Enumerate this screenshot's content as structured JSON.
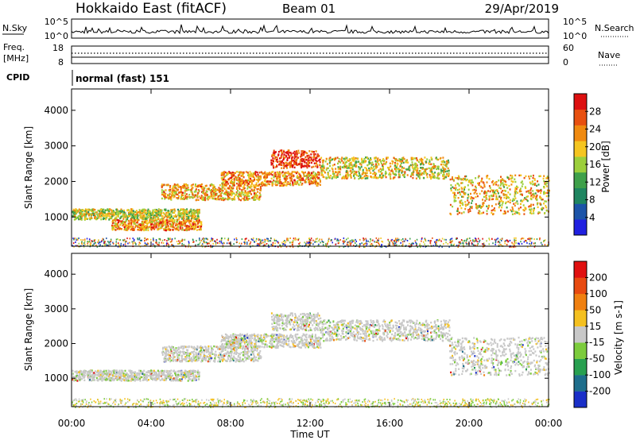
{
  "header": {
    "station": "Hokkaido East (fitACF)",
    "beam": "Beam 01",
    "date": "29/Apr/2019"
  },
  "top_panels": {
    "nsky_label": "N.Sky",
    "nsky_ticks": [
      "10^5",
      "10^0"
    ],
    "nsearch_label": "N.Search",
    "nsearch_ticks": [
      "10^5",
      "10^0"
    ],
    "freq_label_1": "Freq.",
    "freq_label_2": "[MHz]",
    "freq_ticks": [
      "18",
      "8"
    ],
    "nave_label": "Nave",
    "nave_ticks": [
      "60",
      "0"
    ],
    "cpid_label": "CPID",
    "cpid_value": "normal (fast) 151"
  },
  "chart_data": [
    {
      "type": "heatmap",
      "name": "power",
      "ylabel": "Slant Range [km]",
      "yticks": [
        "4000",
        "3000",
        "2000",
        "1000"
      ],
      "ylim": [
        180,
        4600
      ],
      "xlim": [
        0,
        24
      ],
      "colorbar_label": "Power [dB]",
      "colorbar_ticks": [
        "28",
        "24",
        "20",
        "16",
        "12",
        "8",
        "4"
      ],
      "colors": [
        "#2020e0",
        "#1c54a8",
        "#1f8560",
        "#3ea04a",
        "#9ccf3c",
        "#f5c520",
        "#f08a10",
        "#e85010",
        "#dd1010"
      ],
      "bands": [
        {
          "t": [
            0.0,
            6.4
          ],
          "range": [
            950,
            1250
          ],
          "level": 0.55
        },
        {
          "t": [
            2.0,
            6.5
          ],
          "range": [
            650,
            950
          ],
          "level": 0.75
        },
        {
          "t": [
            4.5,
            9.5
          ],
          "range": [
            1500,
            1950
          ],
          "level": 0.7
        },
        {
          "t": [
            7.5,
            12.5
          ],
          "range": [
            1900,
            2300
          ],
          "level": 0.75
        },
        {
          "t": [
            10.0,
            12.5
          ],
          "range": [
            2400,
            2900
          ],
          "level": 0.95
        },
        {
          "t": [
            12.5,
            19.0
          ],
          "range": [
            2100,
            2700
          ],
          "level": 0.6
        },
        {
          "t": [
            19.0,
            24.0
          ],
          "range": [
            1100,
            2200
          ],
          "level": 0.65
        }
      ]
    },
    {
      "type": "heatmap",
      "name": "velocity",
      "ylabel": "Slant Range [km]",
      "yticks": [
        "4000",
        "3000",
        "2000",
        "1000"
      ],
      "ylim": [
        180,
        4600
      ],
      "xlim": [
        0,
        24
      ],
      "colorbar_label": "Velocity [m s-1]",
      "colorbar_ticks": [
        "200",
        "100",
        "50",
        "15",
        "-15",
        "-50",
        "-100",
        "-200"
      ],
      "colors": [
        "#1a2fc8",
        "#1e6e8c",
        "#28a050",
        "#7ccc3c",
        "#c8c8c8",
        "#f4c020",
        "#f08010",
        "#e84a10",
        "#e01010"
      ],
      "bands": [
        {
          "t": [
            0.0,
            6.4
          ],
          "range": [
            950,
            1250
          ],
          "level": 0.5
        },
        {
          "t": [
            4.5,
            9.5
          ],
          "range": [
            1500,
            1950
          ],
          "level": 0.5
        },
        {
          "t": [
            7.5,
            12.5
          ],
          "range": [
            1900,
            2300
          ],
          "level": 0.5
        },
        {
          "t": [
            10.0,
            12.5
          ],
          "range": [
            2400,
            2900
          ],
          "level": 0.7
        },
        {
          "t": [
            12.5,
            19.0
          ],
          "range": [
            2100,
            2700
          ],
          "level": 0.5
        },
        {
          "t": [
            19.0,
            24.0
          ],
          "range": [
            1100,
            2200
          ],
          "level": 0.5
        }
      ]
    }
  ],
  "xaxis": {
    "ticks": [
      "00:00",
      "04:00",
      "08:00",
      "12:00",
      "16:00",
      "20:00",
      "00:00"
    ],
    "label": "Time UT"
  }
}
